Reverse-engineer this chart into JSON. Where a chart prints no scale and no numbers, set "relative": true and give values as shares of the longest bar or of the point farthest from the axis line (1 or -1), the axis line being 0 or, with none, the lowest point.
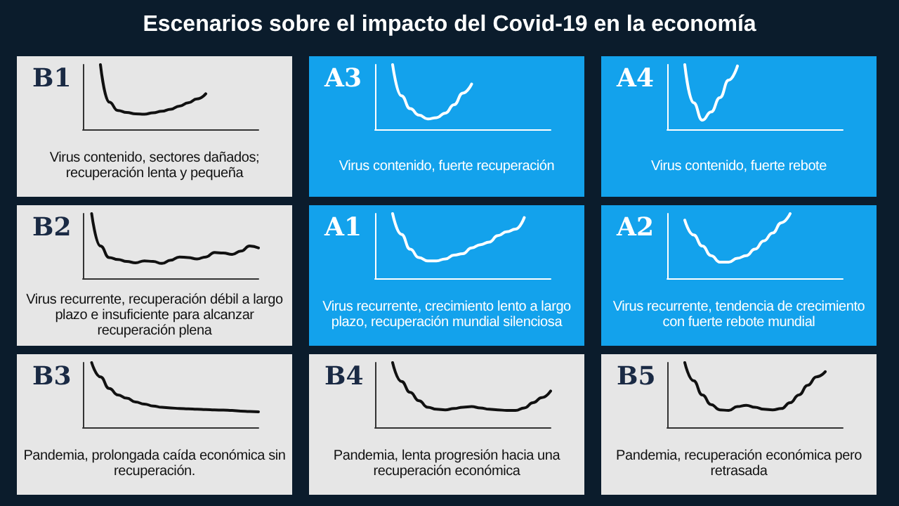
{
  "chart_data": [
    {
      "type": "other",
      "title": "Escenarios sobre el impacto del Covid-19 en la economía"
    },
    {
      "type": "line",
      "title": "B1",
      "annotations": [
        "Virus contenido, sectores dañados; recuperación lenta y pequeña"
      ],
      "relative": true,
      "color": "#111111",
      "categories": [
        null,
        null,
        null,
        null,
        null,
        null,
        null,
        null,
        null,
        null,
        null,
        null,
        null,
        null,
        null,
        null,
        null,
        null,
        null,
        null,
        null
      ],
      "values": [
        null,
        null,
        1.0,
        0.42,
        0.29,
        0.26,
        0.24,
        0.235,
        0.255,
        0.28,
        0.31,
        0.36,
        0.41,
        0.47,
        0.55,
        null,
        null,
        null,
        null,
        null,
        null
      ]
    },
    {
      "type": "line",
      "title": "A3",
      "annotations": [
        "Virus contenido, fuerte recuperación"
      ],
      "relative": true,
      "color": "#ffffff",
      "categories": [
        null,
        null,
        null,
        null,
        null,
        null,
        null,
        null,
        null,
        null,
        null,
        null,
        null,
        null,
        null,
        null,
        null,
        null,
        null,
        null,
        null
      ],
      "values": [
        null,
        null,
        1.0,
        0.52,
        0.32,
        0.22,
        0.16,
        0.18,
        0.25,
        0.38,
        0.56,
        0.7,
        null,
        null,
        null,
        null,
        null,
        null,
        null,
        null,
        null
      ]
    },
    {
      "type": "line",
      "title": "A4",
      "annotations": [
        "Virus contenido, fuerte rebote"
      ],
      "relative": true,
      "color": "#ffffff",
      "categories": [
        null,
        null,
        null,
        null,
        null,
        null,
        null,
        null,
        null,
        null,
        null,
        null,
        null,
        null,
        null,
        null,
        null,
        null,
        null,
        null,
        null
      ],
      "values": [
        null,
        null,
        1.0,
        0.41,
        0.14,
        0.27,
        0.49,
        0.76,
        0.98,
        null,
        null,
        null,
        null,
        null,
        null,
        null,
        null,
        null,
        null,
        null,
        null
      ]
    },
    {
      "type": "line",
      "title": "B2",
      "annotations": [
        "Virus recurrente, recuperación débil a largo plazo e insuficiente para alcanzar recuperación plena"
      ],
      "relative": true,
      "color": "#111111",
      "categories": [
        null,
        null,
        null,
        null,
        null,
        null,
        null,
        null,
        null,
        null,
        null,
        null,
        null,
        null,
        null,
        null,
        null,
        null,
        null,
        null,
        null
      ],
      "values": [
        null,
        1.0,
        0.5,
        0.32,
        0.29,
        0.26,
        0.24,
        0.27,
        0.26,
        0.23,
        0.28,
        0.33,
        0.32,
        0.3,
        0.33,
        0.4,
        0.39,
        0.37,
        0.42,
        0.5,
        0.47
      ]
    },
    {
      "type": "line",
      "title": "A1",
      "annotations": [
        "Virus recurrente, crecimiento lento a largo plazo, recuperación mundial silenciosa"
      ],
      "relative": true,
      "color": "#ffffff",
      "categories": [
        null,
        null,
        null,
        null,
        null,
        null,
        null,
        null,
        null,
        null,
        null,
        null,
        null,
        null,
        null,
        null,
        null,
        null,
        null,
        null,
        null
      ],
      "values": [
        null,
        null,
        1.0,
        0.68,
        0.45,
        0.32,
        0.27,
        0.27,
        0.3,
        0.36,
        0.38,
        0.47,
        0.52,
        0.56,
        0.66,
        0.72,
        0.76,
        0.94,
        null,
        null,
        null
      ]
    },
    {
      "type": "line",
      "title": "A2",
      "annotations": [
        "Virus recurrente, tendencia de crecimiento con fuerte rebote mundial"
      ],
      "relative": true,
      "color": "#ffffff",
      "categories": [
        null,
        null,
        null,
        null,
        null,
        null,
        null,
        null,
        null,
        null,
        null,
        null,
        null,
        null,
        null,
        null,
        null,
        null,
        null,
        null,
        null
      ],
      "values": [
        null,
        null,
        0.9,
        0.67,
        0.5,
        0.35,
        0.25,
        0.25,
        0.31,
        0.35,
        0.45,
        0.58,
        0.7,
        0.86,
        1.0,
        null,
        null,
        null,
        null,
        null,
        null
      ]
    },
    {
      "type": "line",
      "title": "B3",
      "annotations": [
        "Pandemia, prolongada caída económica sin recuperación."
      ],
      "relative": true,
      "color": "#111111",
      "categories": [
        null,
        null,
        null,
        null,
        null,
        null,
        null,
        null,
        null,
        null,
        null,
        null,
        null,
        null,
        null,
        null,
        null,
        null,
        null,
        null,
        null
      ],
      "values": [
        null,
        1.0,
        0.78,
        0.6,
        0.5,
        0.45,
        0.39,
        0.36,
        0.33,
        0.31,
        0.3,
        0.29,
        0.285,
        0.28,
        0.275,
        0.27,
        0.265,
        0.26,
        0.25,
        0.245,
        0.24
      ]
    },
    {
      "type": "line",
      "title": "B4",
      "annotations": [
        "Pandemia, lenta progresión hacia una recuperación económica"
      ],
      "relative": true,
      "color": "#111111",
      "categories": [
        null,
        null,
        null,
        null,
        null,
        null,
        null,
        null,
        null,
        null,
        null,
        null,
        null,
        null,
        null,
        null,
        null,
        null,
        null,
        null,
        null
      ],
      "values": [
        null,
        null,
        1.0,
        0.71,
        0.54,
        0.41,
        0.31,
        0.28,
        0.27,
        0.29,
        0.31,
        0.32,
        0.3,
        0.28,
        0.27,
        0.26,
        0.26,
        0.3,
        0.38,
        0.46,
        0.56
      ]
    },
    {
      "type": "line",
      "title": "B5",
      "annotations": [
        "Pandemia, recuperación económica pero retrasada"
      ],
      "relative": true,
      "color": "#111111",
      "categories": [
        null,
        null,
        null,
        null,
        null,
        null,
        null,
        null,
        null,
        null,
        null,
        null,
        null,
        null,
        null,
        null,
        null,
        null,
        null,
        null,
        null
      ],
      "values": [
        null,
        null,
        1.0,
        0.72,
        0.5,
        0.35,
        0.27,
        0.26,
        0.32,
        0.34,
        0.31,
        0.28,
        0.27,
        0.29,
        0.38,
        0.5,
        0.65,
        0.78,
        0.86,
        null,
        null
      ]
    }
  ]
}
